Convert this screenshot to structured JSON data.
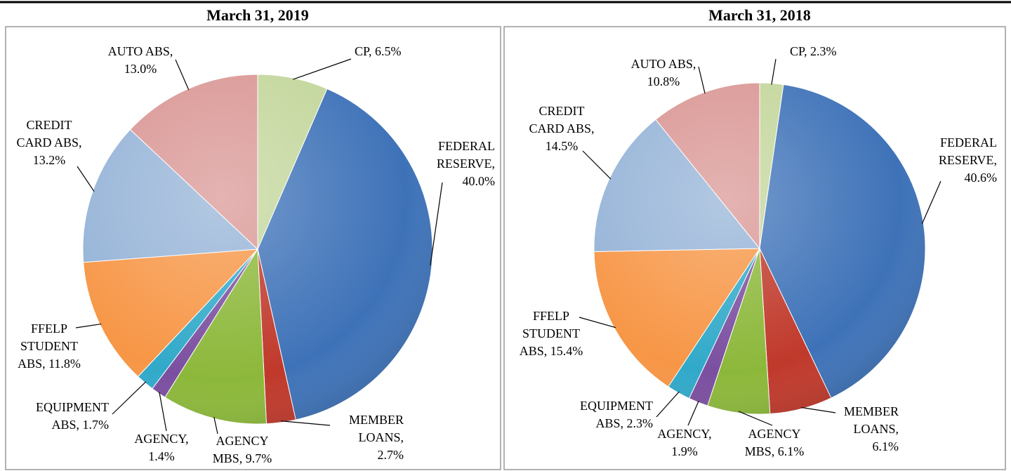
{
  "chart_data": [
    {
      "type": "pie",
      "title": "March 31, 2019",
      "values": [
        6.5,
        40.0,
        2.7,
        9.7,
        1.4,
        1.7,
        11.8,
        13.2,
        13.0
      ],
      "value_labels": [
        [
          "CP, 6.5%"
        ],
        [
          "FEDERAL",
          "RESERVE,",
          "40.0%"
        ],
        [
          "MEMBER",
          "LOANS,",
          "2.7%"
        ],
        [
          "AGENCY",
          "MBS, 9.7%"
        ],
        [
          "AGENCY,",
          "1.4%"
        ],
        [
          "EQUIPMENT",
          "ABS, 1.7%"
        ],
        [
          "FFELP",
          "STUDENT",
          "ABS, 11.8%"
        ],
        [
          "CREDIT",
          "CARD ABS,",
          "13.2%"
        ],
        [
          "AUTO ABS,",
          "13.0%"
        ]
      ],
      "colors": [
        "#c3d69b",
        "#3e72b8",
        "#c0392b",
        "#8cb83a",
        "#7b4fa0",
        "#31a9c9",
        "#f79646",
        "#95b3d7",
        "#d99694"
      ]
    },
    {
      "type": "pie",
      "title": "March 31, 2018",
      "values": [
        2.3,
        40.6,
        6.1,
        6.1,
        1.9,
        2.3,
        15.4,
        14.5,
        10.8
      ],
      "value_labels": [
        [
          "CP, 2.3%"
        ],
        [
          "FEDERAL",
          "RESERVE,",
          "40.6%"
        ],
        [
          "MEMBER",
          "LOANS,",
          "6.1%"
        ],
        [
          "AGENCY",
          "MBS, 6.1%"
        ],
        [
          "AGENCY,",
          "1.9%"
        ],
        [
          "EQUIPMENT",
          "ABS, 2.3%"
        ],
        [
          "FFELP",
          "STUDENT",
          "ABS, 15.4%"
        ],
        [
          "CREDIT",
          "CARD ABS,",
          "14.5%"
        ],
        [
          "AUTO ABS,",
          "10.8%"
        ]
      ],
      "colors": [
        "#c3d69b",
        "#3e72b8",
        "#c0392b",
        "#8cb83a",
        "#7b4fa0",
        "#31a9c9",
        "#f79646",
        "#95b3d7",
        "#d99694"
      ]
    }
  ]
}
